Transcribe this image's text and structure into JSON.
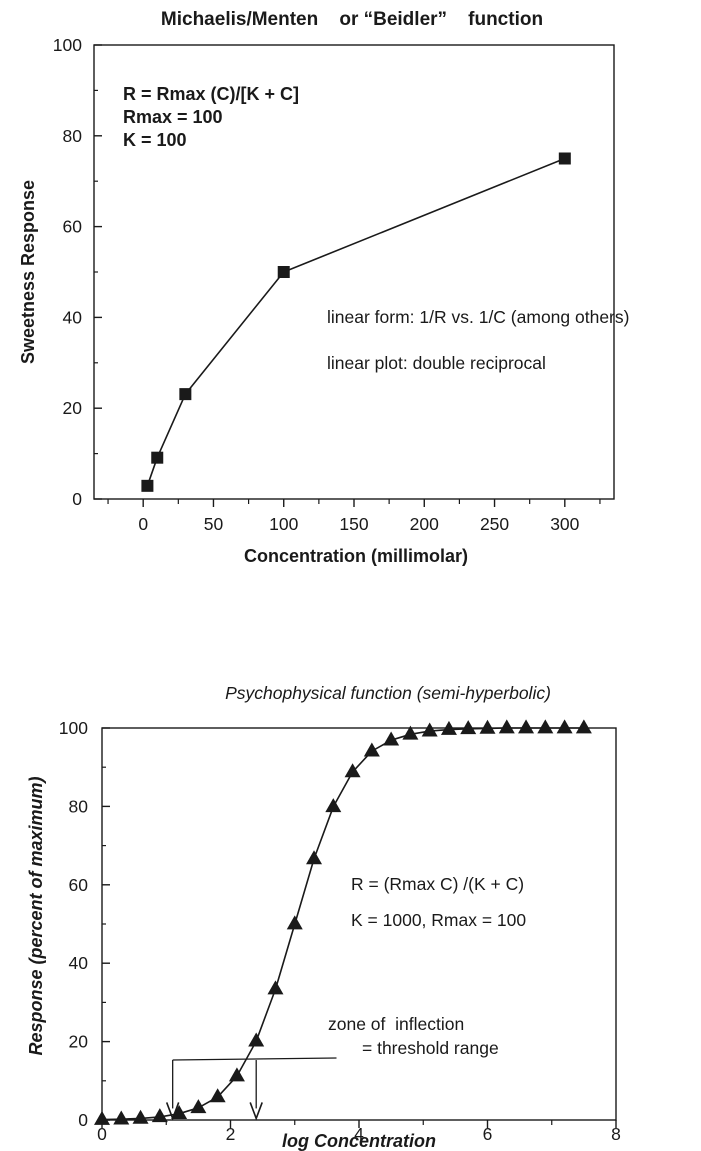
{
  "chart_data": [
    {
      "type": "line",
      "title": "Michaelis/Menten    or “Beidler”    function",
      "xlabel": "Concentration (millimolar)",
      "ylabel": "Sweetness Response",
      "xlim": [
        -35,
        335
      ],
      "ylim": [
        0,
        100
      ],
      "x_ticks": [
        0,
        50,
        100,
        150,
        200,
        250,
        300
      ],
      "y_ticks": [
        0,
        20,
        40,
        60,
        80,
        100
      ],
      "x_minor_ticks": [
        -25,
        25,
        75,
        125,
        175,
        225,
        275,
        325
      ],
      "y_minor_ticks": [
        10,
        30,
        50,
        70,
        90
      ],
      "marker": "square",
      "grid": false,
      "series": [
        {
          "x": [
            3,
            10,
            30,
            100,
            300
          ],
          "y": [
            2.9,
            9.1,
            23.1,
            50,
            75
          ]
        }
      ],
      "annotations": [
        "R = Rmax (C)/[K + C]",
        "Rmax = 100",
        "K = 100",
        "linear form:  1/R vs. 1/C (among others)",
        "linear plot:  double reciprocal"
      ]
    },
    {
      "type": "line",
      "title": "Psychophysical function (semi-hyperbolic)",
      "xlabel": "log Concentration",
      "ylabel": "Response (percent of maximum)",
      "xlim": [
        0,
        8
      ],
      "ylim": [
        0,
        100
      ],
      "x_ticks": [
        0,
        2,
        4,
        6,
        8
      ],
      "y_ticks": [
        0,
        20,
        40,
        60,
        80,
        100
      ],
      "x_minor_ticks": [
        1,
        3,
        5,
        7
      ],
      "y_minor_ticks": [
        10,
        30,
        50,
        70,
        90
      ],
      "marker": "triangle",
      "grid": false,
      "series": [
        {
          "x": [
            0,
            0.3,
            0.6,
            0.9,
            1.2,
            1.5,
            1.8,
            2.1,
            2.4,
            2.7,
            3.0,
            3.3,
            3.6,
            3.9,
            4.2,
            4.5,
            4.8,
            5.1,
            5.4,
            5.7,
            6.0,
            6.3,
            6.6,
            6.9,
            7.2,
            7.5
          ],
          "y": [
            0.1,
            0.2,
            0.4,
            0.8,
            1.6,
            3.1,
            5.9,
            11.2,
            20.1,
            33.4,
            50.0,
            66.6,
            79.9,
            88.8,
            94.1,
            96.9,
            98.4,
            99.2,
            99.6,
            99.8,
            99.9,
            100,
            100,
            100,
            100,
            100
          ]
        }
      ],
      "annotations": [
        "R = (Rmax C) /(K + C)",
        "K = 1000, Rmax = 100",
        "zone of  inflection",
        "= threshold range"
      ],
      "threshold_arrows_x": [
        1.1,
        2.4
      ]
    }
  ]
}
